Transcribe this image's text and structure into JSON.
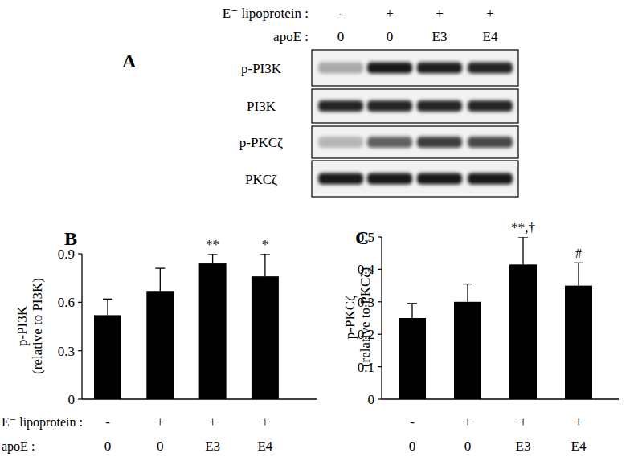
{
  "blot": {
    "panel": "A",
    "header_rows": [
      {
        "label": "E⁻ lipoprotein :",
        "values": [
          "-",
          "+",
          "+",
          "+"
        ]
      },
      {
        "label": "apoE :",
        "values": [
          "0",
          "0",
          "E3",
          "E4"
        ]
      }
    ],
    "bands": [
      {
        "label": "p-PI3K",
        "intensity": [
          0.3,
          0.9,
          0.88,
          0.85
        ]
      },
      {
        "label": "PI3K",
        "intensity": [
          0.85,
          0.85,
          0.85,
          0.85
        ]
      },
      {
        "label": "p-PKCζ",
        "intensity": [
          0.25,
          0.6,
          0.75,
          0.7
        ]
      },
      {
        "label": "PKCζ",
        "intensity": [
          0.9,
          0.9,
          0.9,
          0.9
        ]
      }
    ]
  },
  "chart_data": [
    {
      "type": "bar",
      "panel": "B",
      "y_label": [
        "p-PI3K",
        "(relative to PI3K)"
      ],
      "row_labels": [
        "E⁻ lipoprotein :",
        "apoE :"
      ],
      "categories_top": [
        "-",
        "+",
        "+",
        "+"
      ],
      "categories": [
        "0",
        "0",
        "E3",
        "E4"
      ],
      "values": [
        0.52,
        0.67,
        0.84,
        0.76
      ],
      "errors": [
        0.1,
        0.14,
        0.06,
        0.14
      ],
      "color": "#000000",
      "ylim": [
        0,
        0.9
      ],
      "yticks": [
        0,
        0.3,
        0.6,
        0.9
      ],
      "annotations": [
        {
          "index": 2,
          "text": "**"
        },
        {
          "index": 3,
          "text": "*"
        }
      ]
    },
    {
      "type": "bar",
      "panel": "C",
      "y_label": [
        "p-PKCζ",
        "(relative to PKCζ)"
      ],
      "categories_top": [
        "-",
        "+",
        "+",
        "+"
      ],
      "categories": [
        "0",
        "0",
        "E3",
        "E4"
      ],
      "values": [
        0.25,
        0.3,
        0.415,
        0.35
      ],
      "errors": [
        0.045,
        0.055,
        0.085,
        0.07
      ],
      "color": "#000000",
      "ylim": [
        0,
        0.5
      ],
      "yticks": [
        0,
        0.1,
        0.2,
        0.3,
        0.4,
        0.5
      ],
      "annotations": [
        {
          "index": 2,
          "text": "**,†"
        },
        {
          "index": 3,
          "text": "#"
        }
      ]
    }
  ]
}
